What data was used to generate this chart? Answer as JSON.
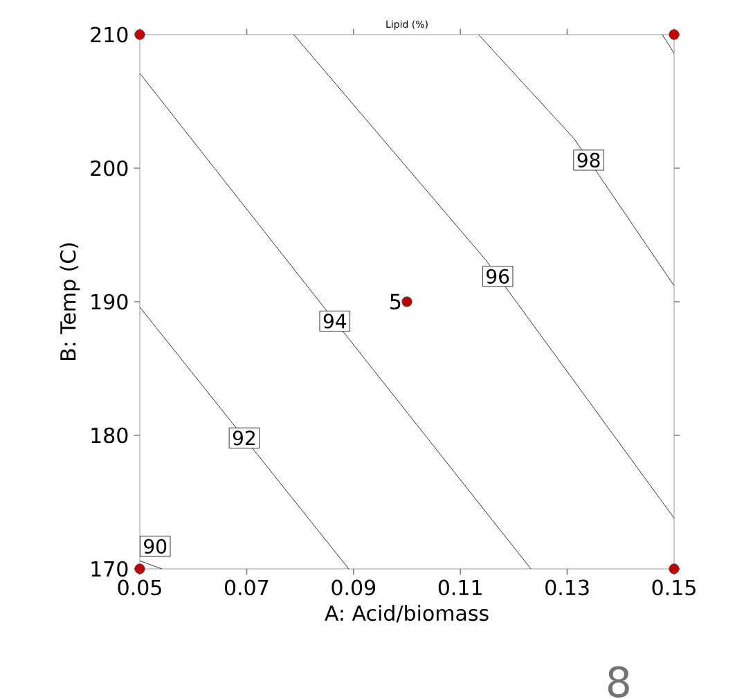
{
  "chart_data": {
    "type": "line",
    "title": "Lipid (%)",
    "xlabel": "A: Acid/biomass",
    "ylabel": "B: Temp (C)",
    "xlim": [
      0.05,
      0.15
    ],
    "ylim": [
      170,
      210
    ],
    "xticks": [
      0.05,
      0.07,
      0.09,
      0.11,
      0.13,
      0.15
    ],
    "yticks": [
      170,
      180,
      190,
      200,
      210
    ],
    "grid": false,
    "series": [
      {
        "name": "90",
        "color": "#000000",
        "x": [
          0.05,
          0.0541
        ],
        "values": [
          170.6,
          170
        ]
      },
      {
        "name": "92",
        "color": "#000000",
        "x": [
          0.05,
          0.0891
        ],
        "values": [
          189.6,
          170
        ]
      },
      {
        "name": "94",
        "color": "#000000",
        "x": [
          0.05,
          0.0864,
          0.1232
        ],
        "values": [
          207.1,
          188.6,
          170
        ]
      },
      {
        "name": "96",
        "color": "#000000",
        "x": [
          0.0788,
          0.1148,
          0.15
        ],
        "values": [
          210,
          193.1,
          173.8
        ]
      },
      {
        "name": "98",
        "color": "#000000",
        "x": [
          0.1134,
          0.1313,
          0.15
        ],
        "values": [
          210,
          202.2,
          191.2
        ]
      },
      {
        "color": "#000000",
        "x": [
          0.1478,
          0.15
        ],
        "values": [
          210,
          208.6
        ]
      },
      {
        "type": "scatter",
        "color": "#c00000",
        "marker": "circle",
        "x": [
          0.05,
          0.15,
          0.05,
          0.15,
          0.1
        ],
        "values": [
          210,
          210,
          170,
          170,
          190
        ]
      }
    ],
    "annotations": [
      {
        "text": "5",
        "x": 0.1,
        "y": 190
      },
      "8"
    ]
  }
}
